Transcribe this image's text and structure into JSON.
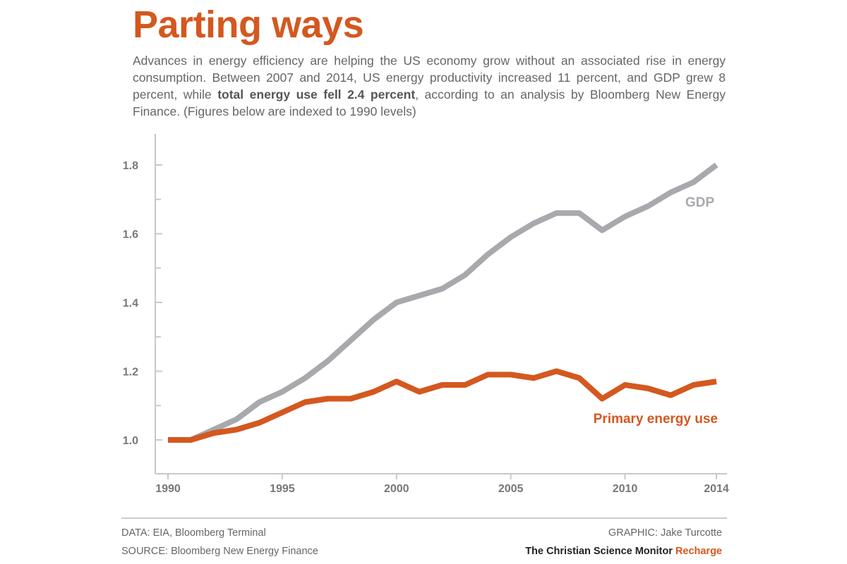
{
  "title": "Parting ways",
  "subtitle_pre": "Advances in energy efficiency are helping the US economy grow without an associated rise in energy consumption. Between 2007 and 2014, US energy productivity increased 11 percent, and GDP grew 8 percent, while ",
  "subtitle_bold": "total energy use fell 2.4 percent",
  "subtitle_post": ", according to an analysis by Bloomberg New Energy Finance. (Figures below are indexed to 1990 levels)",
  "footer": {
    "data": "DATA: EIA, Bloomberg Terminal",
    "source": "SOURCE: Bloomberg New Energy Finance",
    "graphic": "GRAPHIC: Jake Turcotte",
    "publisher": "The Christian Science Monitor",
    "section": "Recharge"
  },
  "colors": {
    "gdp": "#a7a9ac",
    "energy": "#d4581f",
    "axis": "#c8c8c8",
    "tick": "#777777"
  },
  "chart_data": {
    "type": "line",
    "title": "Parting ways",
    "xlabel": "",
    "ylabel": "",
    "x": [
      1990,
      1991,
      1992,
      1993,
      1994,
      1995,
      1996,
      1997,
      1998,
      1999,
      2000,
      2001,
      2002,
      2003,
      2004,
      2005,
      2006,
      2007,
      2008,
      2009,
      2010,
      2011,
      2012,
      2013,
      2014
    ],
    "series": [
      {
        "name": "GDP",
        "values": [
          1.0,
          1.0,
          1.03,
          1.06,
          1.11,
          1.14,
          1.18,
          1.23,
          1.29,
          1.35,
          1.4,
          1.42,
          1.44,
          1.48,
          1.54,
          1.59,
          1.63,
          1.66,
          1.66,
          1.61,
          1.65,
          1.68,
          1.72,
          1.75,
          1.8
        ]
      },
      {
        "name": "Primary energy use",
        "values": [
          1.0,
          1.0,
          1.02,
          1.03,
          1.05,
          1.08,
          1.11,
          1.12,
          1.12,
          1.14,
          1.17,
          1.14,
          1.16,
          1.16,
          1.19,
          1.19,
          1.18,
          1.2,
          1.18,
          1.12,
          1.16,
          1.15,
          1.13,
          1.16,
          1.17
        ]
      }
    ],
    "xticks": [
      "1990",
      "1995",
      "2000",
      "2005",
      "2010",
      "2014"
    ],
    "yticks": [
      "1.0",
      "1.2",
      "1.4",
      "1.6",
      "1.8"
    ],
    "xlim": [
      1990,
      2014
    ],
    "ylim": [
      0.9,
      1.9
    ],
    "grid": false,
    "legend": "inline labels"
  }
}
